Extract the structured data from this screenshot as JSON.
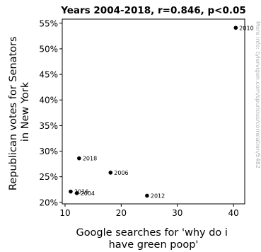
{
  "chart_data": {
    "type": "scatter",
    "title": "Years 2004-2018, r=0.846, p<0.05",
    "xlabel_lines": [
      "Google searches for 'why do i",
      "have green poop'"
    ],
    "ylabel_lines": [
      "Republican votes for Senators",
      "in New York"
    ],
    "xlim": [
      9.5,
      42
    ],
    "ylim": [
      19.7,
      55.8
    ],
    "x_ticks": [
      10,
      20,
      30,
      40
    ],
    "y_ticks": [
      20,
      25,
      30,
      35,
      40,
      45,
      50,
      55
    ],
    "y_tick_suffix": "%",
    "points": [
      {
        "label": "2004",
        "x": 12.1,
        "y": 21.8
      },
      {
        "label": "2006",
        "x": 18.1,
        "y": 25.8
      },
      {
        "label": "2010",
        "x": 40.4,
        "y": 54.1
      },
      {
        "label": "2012",
        "x": 24.6,
        "y": 21.3
      },
      {
        "label": "2016",
        "x": 11.0,
        "y": 22.1
      },
      {
        "label": "2018",
        "x": 12.5,
        "y": 28.6
      }
    ],
    "grid": false,
    "marker_color": "#000000",
    "watermark": "More info: tylervigen.com/spurious/correlation/5482"
  }
}
